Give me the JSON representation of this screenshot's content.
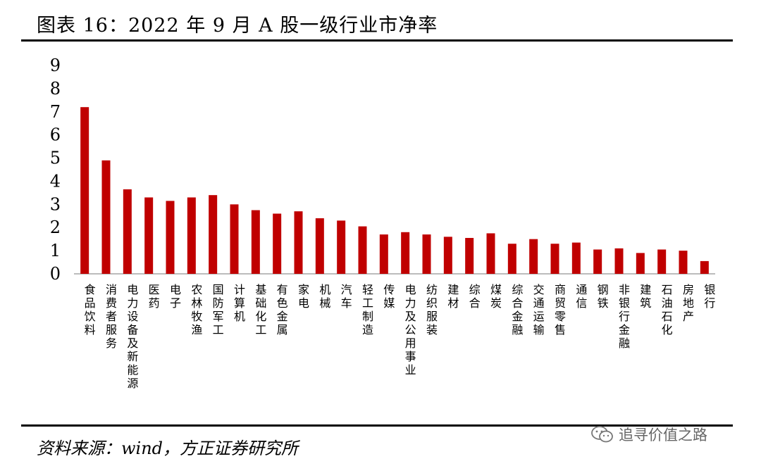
{
  "title": "图表 16：2022 年 9 月 A 股一级行业市净率",
  "source": "资料来源：wind，方正证券研究所",
  "watermark": {
    "text": "追寻价值之路",
    "icon": "wechat-icon"
  },
  "colors": {
    "bar": "#C00000",
    "axis": "#A6A6A6",
    "text": "#000000"
  },
  "chart_data": {
    "type": "bar",
    "ylim": [
      0,
      9
    ],
    "yticks": [
      0,
      1,
      2,
      3,
      4,
      5,
      6,
      7,
      8,
      9
    ],
    "grid": false,
    "categories": [
      "食品饮料",
      "消费者服务",
      "电力设备及新能源",
      "医药",
      "电子",
      "农林牧渔",
      "国防军工",
      "计算机",
      "基础化工",
      "有色金属",
      "家电",
      "机械",
      "汽车",
      "轻工制造",
      "传媒",
      "电力及公用事业",
      "纺织服装",
      "建材",
      "综合",
      "煤炭",
      "综合金融",
      "交通运输",
      "商贸零售",
      "通信",
      "钢铁",
      "非银行金融",
      "建筑",
      "石油石化",
      "房地产",
      "银行"
    ],
    "values": [
      7.2,
      4.9,
      3.65,
      3.3,
      3.15,
      3.3,
      3.4,
      3.0,
      2.75,
      2.6,
      2.7,
      2.4,
      2.3,
      2.05,
      1.7,
      1.8,
      1.7,
      1.6,
      1.55,
      1.75,
      1.3,
      1.5,
      1.3,
      1.35,
      1.05,
      1.1,
      0.9,
      1.05,
      1.0,
      0.55
    ]
  }
}
